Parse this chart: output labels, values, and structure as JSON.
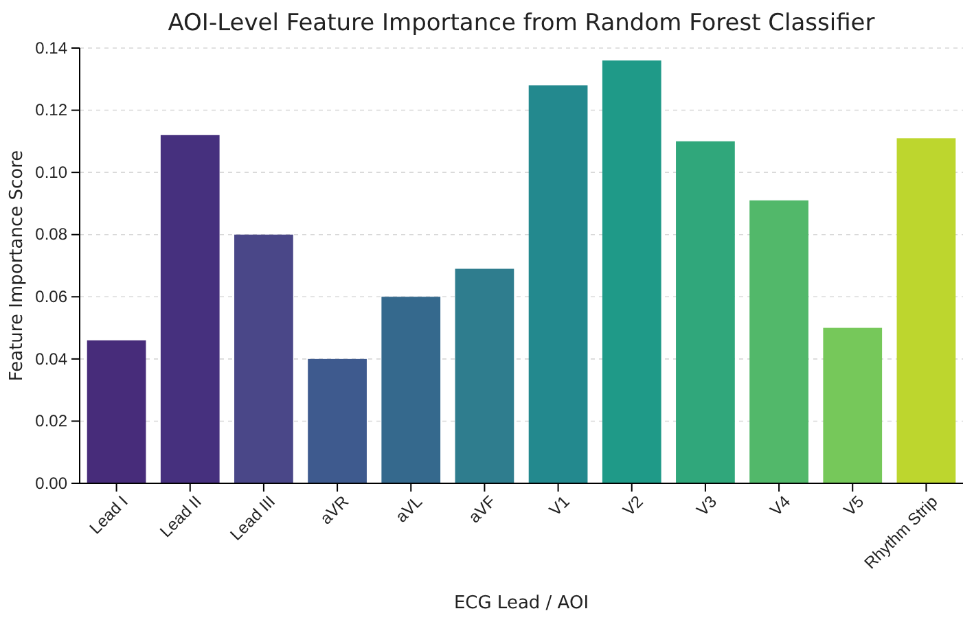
{
  "chart_data": {
    "type": "bar",
    "title": "AOI-Level Feature Importance from Random Forest Classifier",
    "xlabel": "ECG Lead / AOI",
    "ylabel": "Feature Importance Score",
    "categories": [
      "Lead I",
      "Lead II",
      "Lead III",
      "aVR",
      "aVL",
      "aVF",
      "V1",
      "V2",
      "V3",
      "V4",
      "V5",
      "Rhythm Strip"
    ],
    "values": [
      0.046,
      0.112,
      0.08,
      0.04,
      0.06,
      0.069,
      0.128,
      0.136,
      0.11,
      0.091,
      0.05,
      0.111
    ],
    "colors": [
      "#472c7a",
      "#46307e",
      "#4a4788",
      "#3e5a8e",
      "#35698d",
      "#2f7d8e",
      "#23898e",
      "#1f9a88",
      "#30a77b",
      "#52b86a",
      "#76c85a",
      "#bdd62e"
    ],
    "ylim": [
      0,
      0.14
    ],
    "yticks": [
      {
        "value": 0,
        "label": "0.00"
      },
      {
        "value": 0.02,
        "label": "0.02"
      },
      {
        "value": 0.04,
        "label": "0.04"
      },
      {
        "value": 0.06,
        "label": "0.06"
      },
      {
        "value": 0.08,
        "label": "0.08"
      },
      {
        "value": 0.1,
        "label": "0.10"
      },
      {
        "value": 0.12,
        "label": "0.12"
      },
      {
        "value": 0.14,
        "label": "0.14"
      }
    ],
    "grid": "y"
  }
}
